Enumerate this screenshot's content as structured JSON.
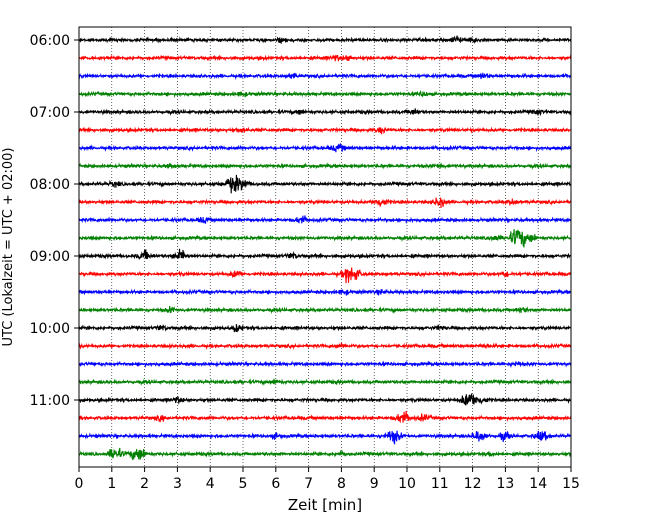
{
  "chart_data": {
    "type": "line",
    "xlabel": "Zeit  [min]",
    "ylabel": "UTC (Lokalzeit = UTC + 02:00)",
    "xlim": [
      0,
      15
    ],
    "x_ticks": [
      "0",
      "1",
      "2",
      "3",
      "4",
      "5",
      "6",
      "7",
      "8",
      "9",
      "10",
      "11",
      "12",
      "13",
      "14",
      "15"
    ],
    "y_tick_labels": [
      "06:00",
      "07:00",
      "08:00",
      "09:00",
      "10:00",
      "11:00"
    ],
    "grid": "vertical dotted",
    "trace_colors": [
      "#000000",
      "#ff0000",
      "#0000ff",
      "#008000"
    ],
    "traces": [
      {
        "start": "06:00",
        "events": [
          {
            "t": 6.2,
            "amp": 1.5
          },
          {
            "t": 11.5,
            "amp": 2.2
          },
          {
            "t": 12.0,
            "amp": 1.5
          }
        ]
      },
      {
        "start": "06:15",
        "events": [
          {
            "t": 7.8,
            "amp": 1.5
          },
          {
            "t": 8.2,
            "amp": 1.5
          }
        ]
      },
      {
        "start": "06:30",
        "events": [
          {
            "t": 6.5,
            "amp": 1.3
          },
          {
            "t": 12.3,
            "amp": 1.8
          }
        ]
      },
      {
        "start": "06:45",
        "events": [
          {
            "t": 5.0,
            "amp": 1.3
          },
          {
            "t": 10.5,
            "amp": 1.3
          }
        ]
      },
      {
        "start": "07:00",
        "events": [
          {
            "t": 6.7,
            "amp": 1.5
          },
          {
            "t": 10.2,
            "amp": 1.8
          },
          {
            "t": 14.0,
            "amp": 1.3
          }
        ]
      },
      {
        "start": "07:15",
        "events": [
          {
            "t": 5.0,
            "amp": 1.5
          },
          {
            "t": 9.2,
            "amp": 1.8
          }
        ]
      },
      {
        "start": "07:30",
        "events": [
          {
            "t": 7.8,
            "amp": 1.3
          },
          {
            "t": 8.0,
            "amp": 1.3
          }
        ]
      },
      {
        "start": "07:45",
        "events": [
          {
            "t": 2.8,
            "amp": 1.3
          },
          {
            "t": 11.0,
            "amp": 1.3
          }
        ]
      },
      {
        "start": "08:00",
        "events": [
          {
            "t": 1.1,
            "amp": 1.3
          },
          {
            "t": 4.7,
            "amp": 5.0
          },
          {
            "t": 5.0,
            "amp": 2.5
          }
        ]
      },
      {
        "start": "08:15",
        "events": [
          {
            "t": 9.2,
            "amp": 3.0
          },
          {
            "t": 11.0,
            "amp": 3.0
          },
          {
            "t": 13.2,
            "amp": 1.5
          }
        ]
      },
      {
        "start": "08:30",
        "events": [
          {
            "t": 3.8,
            "amp": 1.5
          },
          {
            "t": 6.8,
            "amp": 2.5
          }
        ]
      },
      {
        "start": "08:45",
        "events": [
          {
            "t": 12.7,
            "amp": 1.8
          },
          {
            "t": 13.4,
            "amp": 6.5
          },
          {
            "t": 13.8,
            "amp": 2.0
          }
        ]
      },
      {
        "start": "09:00",
        "events": [
          {
            "t": 2.0,
            "amp": 3.0
          },
          {
            "t": 3.1,
            "amp": 3.5
          },
          {
            "t": 6.5,
            "amp": 1.8
          }
        ]
      },
      {
        "start": "09:15",
        "events": [
          {
            "t": 4.8,
            "amp": 2.2
          },
          {
            "t": 8.3,
            "amp": 5.5
          },
          {
            "t": 13.0,
            "amp": 1.5
          }
        ]
      },
      {
        "start": "09:30",
        "events": [
          {
            "t": 8.1,
            "amp": 1.5
          },
          {
            "t": 9.2,
            "amp": 1.3
          }
        ]
      },
      {
        "start": "09:45",
        "events": [
          {
            "t": 2.8,
            "amp": 1.5
          },
          {
            "t": 13.5,
            "amp": 1.5
          }
        ]
      },
      {
        "start": "10:00",
        "events": [
          {
            "t": 2.5,
            "amp": 1.5
          },
          {
            "t": 4.8,
            "amp": 2.0
          },
          {
            "t": 11.0,
            "amp": 1.3
          }
        ]
      },
      {
        "start": "10:15",
        "events": [
          {
            "t": 8.0,
            "amp": 1.3
          },
          {
            "t": 12.4,
            "amp": 1.3
          }
        ]
      },
      {
        "start": "10:30",
        "events": [
          {
            "t": 13.3,
            "amp": 1.3
          }
        ]
      },
      {
        "start": "10:45",
        "events": [
          {
            "t": 6.0,
            "amp": 1.3
          }
        ]
      },
      {
        "start": "11:00",
        "events": [
          {
            "t": 3.0,
            "amp": 1.5
          },
          {
            "t": 11.9,
            "amp": 5.0
          },
          {
            "t": 12.3,
            "amp": 2.0
          }
        ]
      },
      {
        "start": "11:15",
        "events": [
          {
            "t": 2.5,
            "amp": 1.3
          },
          {
            "t": 9.9,
            "amp": 4.0
          },
          {
            "t": 10.5,
            "amp": 2.0
          }
        ]
      },
      {
        "start": "11:30",
        "events": [
          {
            "t": 6.0,
            "amp": 1.3
          },
          {
            "t": 9.6,
            "amp": 4.0
          },
          {
            "t": 12.2,
            "amp": 3.5
          },
          {
            "t": 13.0,
            "amp": 2.5
          },
          {
            "t": 14.1,
            "amp": 3.0
          }
        ]
      },
      {
        "start": "11:45",
        "events": [
          {
            "t": 1.1,
            "amp": 4.0
          },
          {
            "t": 1.8,
            "amp": 4.5
          },
          {
            "t": 8.0,
            "amp": 1.3
          },
          {
            "t": 12.5,
            "amp": 1.3
          }
        ]
      }
    ]
  }
}
